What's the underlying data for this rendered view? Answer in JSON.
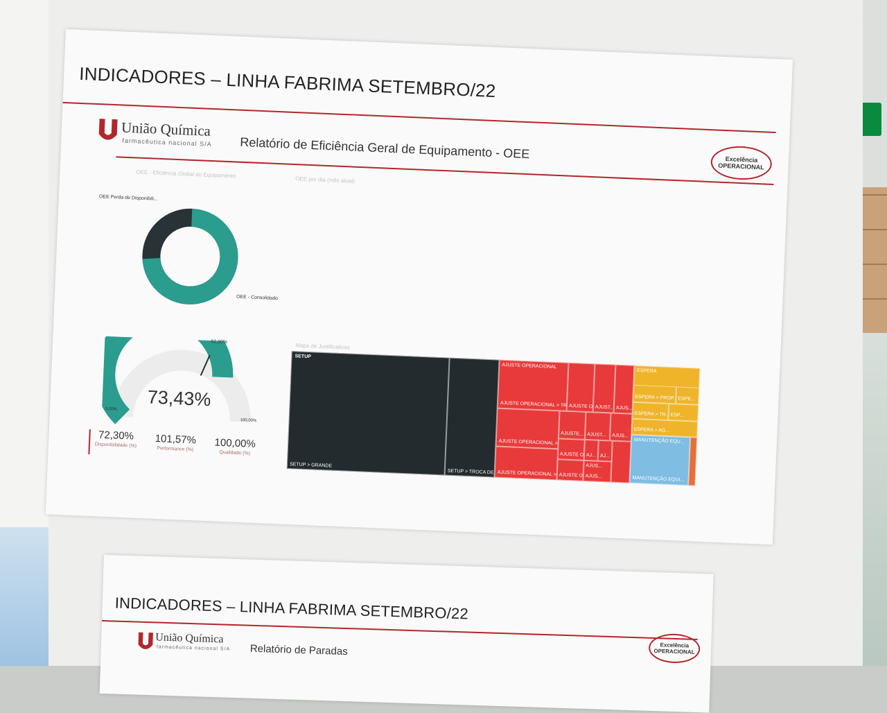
{
  "sheet1": {
    "title": "INDICADORES – LINHA FABRIMA SETEMBRO/22",
    "company": "União Química",
    "company_sub": "farmacêutica nacional S/A",
    "subtitle": "Relatório de Eficiência Geral de Equipamento - OEE",
    "badge": {
      "line1": "Excelência",
      "line2": "OPERACIONAL"
    },
    "donut": {
      "faint_title": "OEE - Eficiência Global do Equipamento",
      "label_loss": "OEE Perda de Disponibili...",
      "label_consolidated": "OEE - Consolidado",
      "colors": {
        "consolidated": "#2a9d8f",
        "loss": "#283237"
      },
      "consolidated_fraction": 0.734
    },
    "faint_top_chart_title": "OEE por dia (mês atual)",
    "gauge": {
      "value_label": "73,43%",
      "value": 73.43,
      "target_label": "62,00%",
      "min_label": "0,00%",
      "max_label": "100,00%"
    },
    "kpis": [
      {
        "value": "72,30%",
        "label": "Disponibilidade (%)"
      },
      {
        "value": "101,57%",
        "label": "Performance (%)"
      },
      {
        "value": "100,00%",
        "label": "Qualidade (%)"
      }
    ],
    "treemap": {
      "faint_title": "Mapa de Justificativas",
      "colors": {
        "setup": "#242b2e",
        "ajuste": "#e83a3a",
        "espera": "#efb42a",
        "manutencao": "#7fbde2"
      },
      "labels": {
        "setup": "SETUP",
        "setup_grande": "SETUP > GRANDE",
        "setup_troca": "SETUP > TROCA DE...",
        "ajuste": "AJUSTE OPERACIONAL",
        "ajuste_tr": "AJUSTE OPERACIONAL > TR...",
        "ajuste_se": "AJUSTE OPERACIONAL > SE...",
        "ajuste_tr2": "AJUSTE OPERACIONAL > TR...",
        "ajuste_o1": "AJUSTE O...",
        "ajust1": "AJUST...",
        "ajus1": "AJUS...",
        "ajuste_o2": "AJUSTE...",
        "ajust2": "AJUST...",
        "ajus2": "AJUS...",
        "ajuste_o3": "AJUSTE O...",
        "ai1": "AJ...",
        "ai2": "AJ...",
        "ajus3": "AJUS...",
        "ajuste_o4": "AJUSTE O...",
        "ajus4": "AJUS...",
        "espera": "ESPERA",
        "espera_pro": "ESPERA > PROP...",
        "espe": "ESPE...",
        "espera_tr": "ESPERA > TR...",
        "esp2": "ESP...",
        "espera_ag": "ESPERA > AG...",
        "manutencao": "MANUTENÇÃO EQU...",
        "manutencao_sub": "MANUTENÇÃO EQUI..."
      }
    }
  },
  "sheet2": {
    "title": "INDICADORES – LINHA FABRIMA SETEMBRO/22",
    "company": "União Química",
    "company_sub": "farmacêutica nacional S/A",
    "subtitle": "Relatório de Paradas",
    "badge": {
      "line1": "Excelência",
      "line2": "OPERACIONAL"
    }
  }
}
